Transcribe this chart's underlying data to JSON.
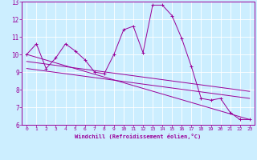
{
  "xlabel": "Windchill (Refroidissement éolien,°C)",
  "background_color": "#cceeff",
  "line_color": "#990099",
  "grid_color": "#ffffff",
  "xlim": [
    -0.5,
    23.5
  ],
  "ylim": [
    6,
    13
  ],
  "xticks": [
    0,
    1,
    2,
    3,
    4,
    5,
    6,
    7,
    8,
    9,
    10,
    11,
    12,
    13,
    14,
    15,
    16,
    17,
    18,
    19,
    20,
    21,
    22,
    23
  ],
  "yticks": [
    6,
    7,
    8,
    9,
    10,
    11,
    12,
    13
  ],
  "line1_x": [
    0,
    1,
    2,
    3,
    4,
    5,
    6,
    7,
    8,
    9,
    10,
    11,
    12,
    13,
    14,
    15,
    16,
    17,
    18,
    19,
    20,
    21,
    22,
    23
  ],
  "line1_y": [
    10.0,
    10.6,
    9.2,
    9.8,
    10.6,
    10.2,
    9.7,
    9.0,
    8.9,
    10.0,
    11.4,
    11.6,
    10.1,
    12.8,
    12.8,
    12.2,
    10.9,
    9.3,
    7.5,
    7.4,
    7.5,
    6.7,
    6.3,
    6.3
  ],
  "line2_x": [
    0,
    23
  ],
  "line2_y": [
    10.0,
    6.3
  ],
  "line3_x": [
    0,
    23
  ],
  "line3_y": [
    9.6,
    7.9
  ],
  "line4_x": [
    0,
    23
  ],
  "line4_y": [
    9.2,
    7.5
  ]
}
